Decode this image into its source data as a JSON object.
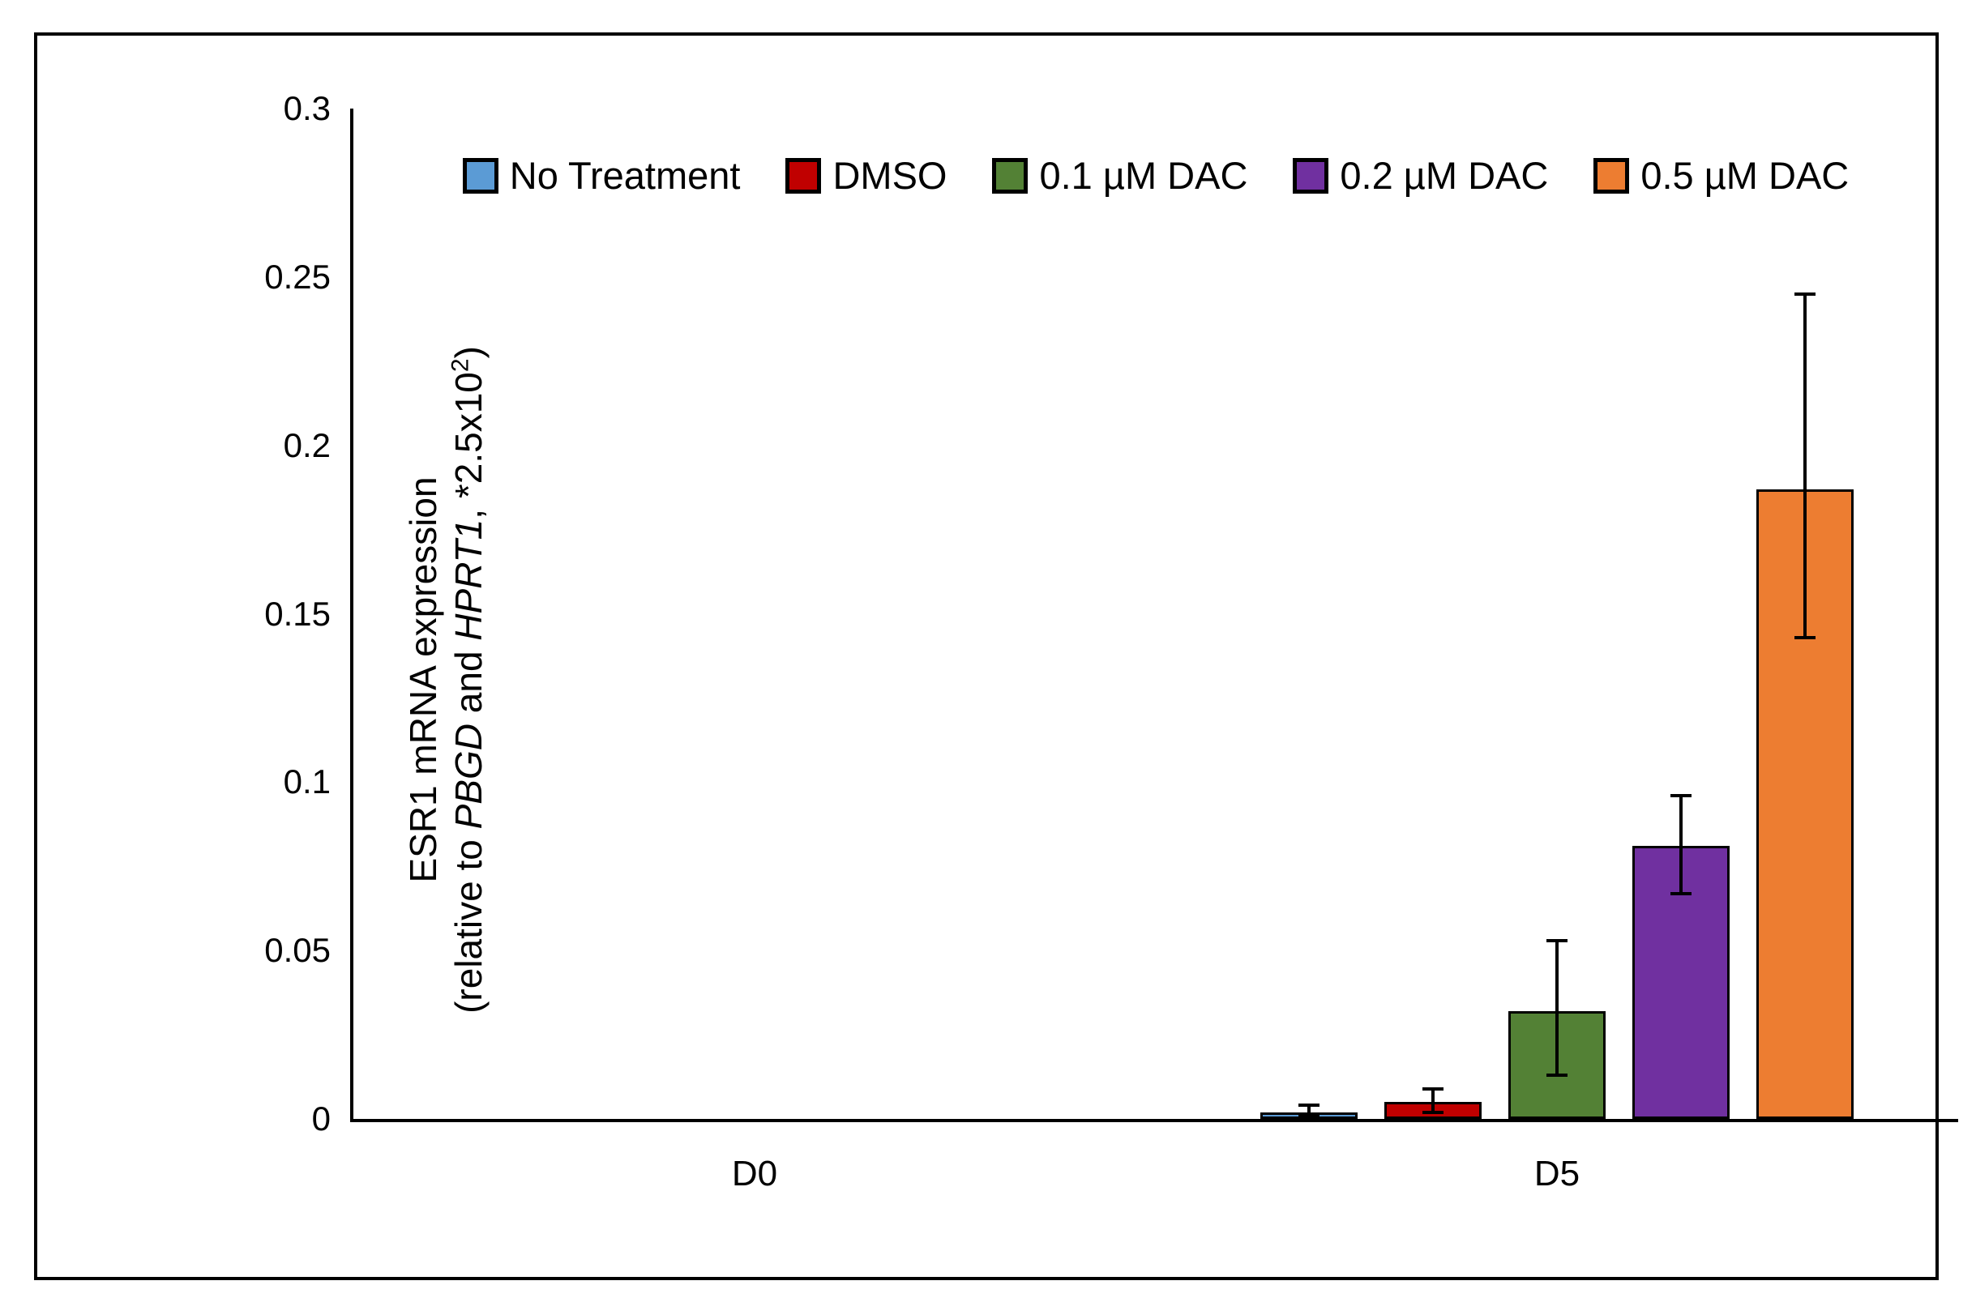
{
  "figure": {
    "background": "#ffffff",
    "border_color": "#000000"
  },
  "y_axis": {
    "title_line1": "ESR1 mRNA expression",
    "title_line2": {
      "open": "(relative to ",
      "gene1": "PBGD",
      "mid": " and ",
      "gene2": "HPRT1",
      "tail": ", *2.5x10",
      "sup": "2",
      "close": ")"
    },
    "tick_labels": [
      "0.3",
      "0.25",
      "0.2",
      "0.15",
      "0.1",
      "0.05",
      "0"
    ]
  },
  "x_axis": {
    "categories": [
      "D0",
      "D5"
    ]
  },
  "chart_data": {
    "type": "bar",
    "title": "",
    "xlabel": "",
    "ylabel": "ESR1 mRNA expression (relative to PBGD and HPRT1, *2.5x10^2)",
    "categories": [
      "D0",
      "D5"
    ],
    "ylim": [
      0,
      0.3
    ],
    "ytick_step": 0.05,
    "grid": false,
    "legend_position": "top",
    "series": [
      {
        "name": "No Treatment",
        "color": "#5B9BD5",
        "values": [
          0,
          0.002
        ],
        "whisker_top": [
          0,
          0.004
        ],
        "whisker_bottom": [
          0,
          0.001
        ]
      },
      {
        "name": "DMSO",
        "color": "#C00000",
        "values": [
          0,
          0.005
        ],
        "whisker_top": [
          0,
          0.009
        ],
        "whisker_bottom": [
          0,
          0.002
        ]
      },
      {
        "name": "0.1 µM DAC",
        "color": "#538135",
        "values": [
          0,
          0.032
        ],
        "whisker_top": [
          0,
          0.053
        ],
        "whisker_bottom": [
          0,
          0.013
        ]
      },
      {
        "name": "0.2 µM DAC",
        "color": "#7030A0",
        "values": [
          0,
          0.081
        ],
        "whisker_top": [
          0,
          0.096
        ],
        "whisker_bottom": [
          0,
          0.067
        ]
      },
      {
        "name": "0.5 µM DAC",
        "color": "#ED7D31",
        "values": [
          0,
          0.187
        ],
        "whisker_top": [
          0,
          0.245
        ],
        "whisker_bottom": [
          0,
          0.143
        ]
      }
    ]
  }
}
